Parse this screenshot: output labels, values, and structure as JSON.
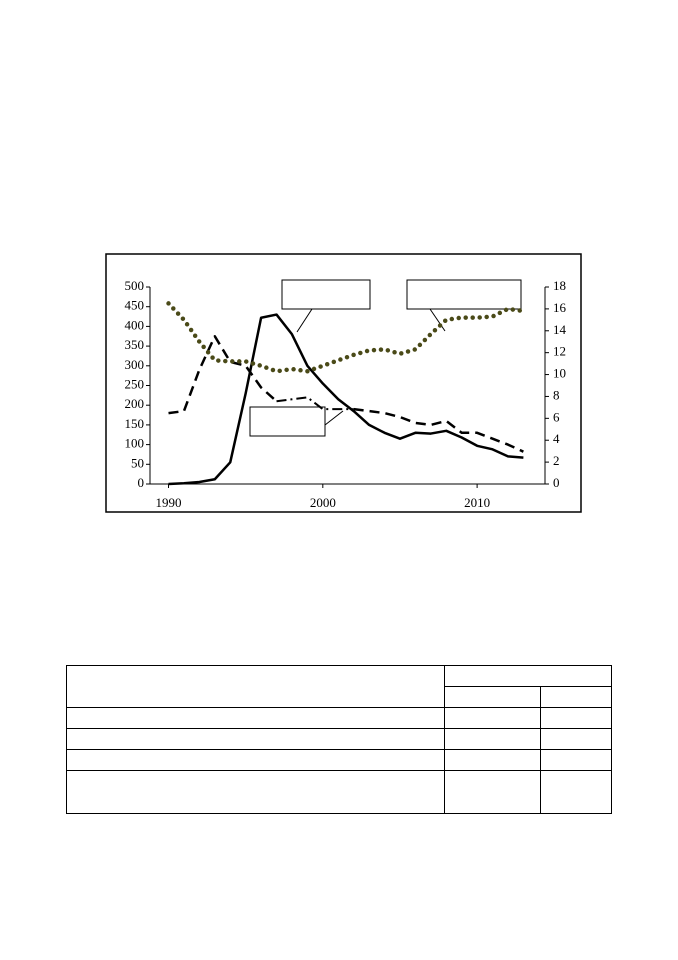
{
  "chart_data": {
    "type": "line",
    "x": [
      1990,
      1991,
      1992,
      1993,
      1994,
      1995,
      1996,
      1997,
      1998,
      1999,
      2000,
      2001,
      2002,
      2003,
      2004,
      2005,
      2006,
      2007,
      2008,
      2009,
      2010,
      2011,
      2012,
      2013
    ],
    "xlim": [
      1988.8,
      2014.4
    ],
    "xticks": [
      1990,
      2000,
      2010
    ],
    "ylim": [
      0,
      500
    ],
    "yticks": [
      0,
      50,
      100,
      150,
      200,
      250,
      300,
      350,
      400,
      450,
      500
    ],
    "y2lim": [
      0,
      18
    ],
    "y2ticks": [
      0,
      2,
      4,
      6,
      8,
      10,
      12,
      14,
      16,
      18
    ],
    "grid": false,
    "series": [
      {
        "color": "#000000",
        "style": "solid",
        "values": [
          0,
          2,
          5,
          12,
          55,
          230,
          422,
          430,
          380,
          300,
          255,
          215,
          185,
          150,
          130,
          115,
          130,
          128,
          135,
          118,
          97,
          88,
          70,
          67
        ]
      },
      {
        "color": "#000000",
        "style": "dashed",
        "values": [
          180,
          185,
          290,
          375,
          310,
          300,
          245,
          210,
          null,
          null,
          null,
          null,
          190,
          185,
          180,
          170,
          155,
          150,
          160,
          130,
          130,
          115,
          100,
          82
        ]
      },
      {
        "color": "#000000",
        "style": "dashdot",
        "values": [
          null,
          null,
          null,
          null,
          null,
          null,
          null,
          210,
          215,
          220,
          190,
          190,
          190,
          null,
          null,
          null,
          null,
          null,
          null,
          null,
          null,
          null,
          null,
          null
        ]
      },
      {
        "color": "#4a4a18",
        "style": "dotted",
        "axis": "y2",
        "values": [
          16.5,
          15,
          13,
          11.3,
          11.2,
          11.2,
          10.8,
          10.3,
          10.5,
          10.3,
          10.8,
          11.3,
          11.8,
          12.2,
          12.3,
          11.9,
          12.3,
          13.7,
          15,
          15.2,
          15.2,
          15.3,
          16,
          15.8
        ]
      }
    ]
  }
}
